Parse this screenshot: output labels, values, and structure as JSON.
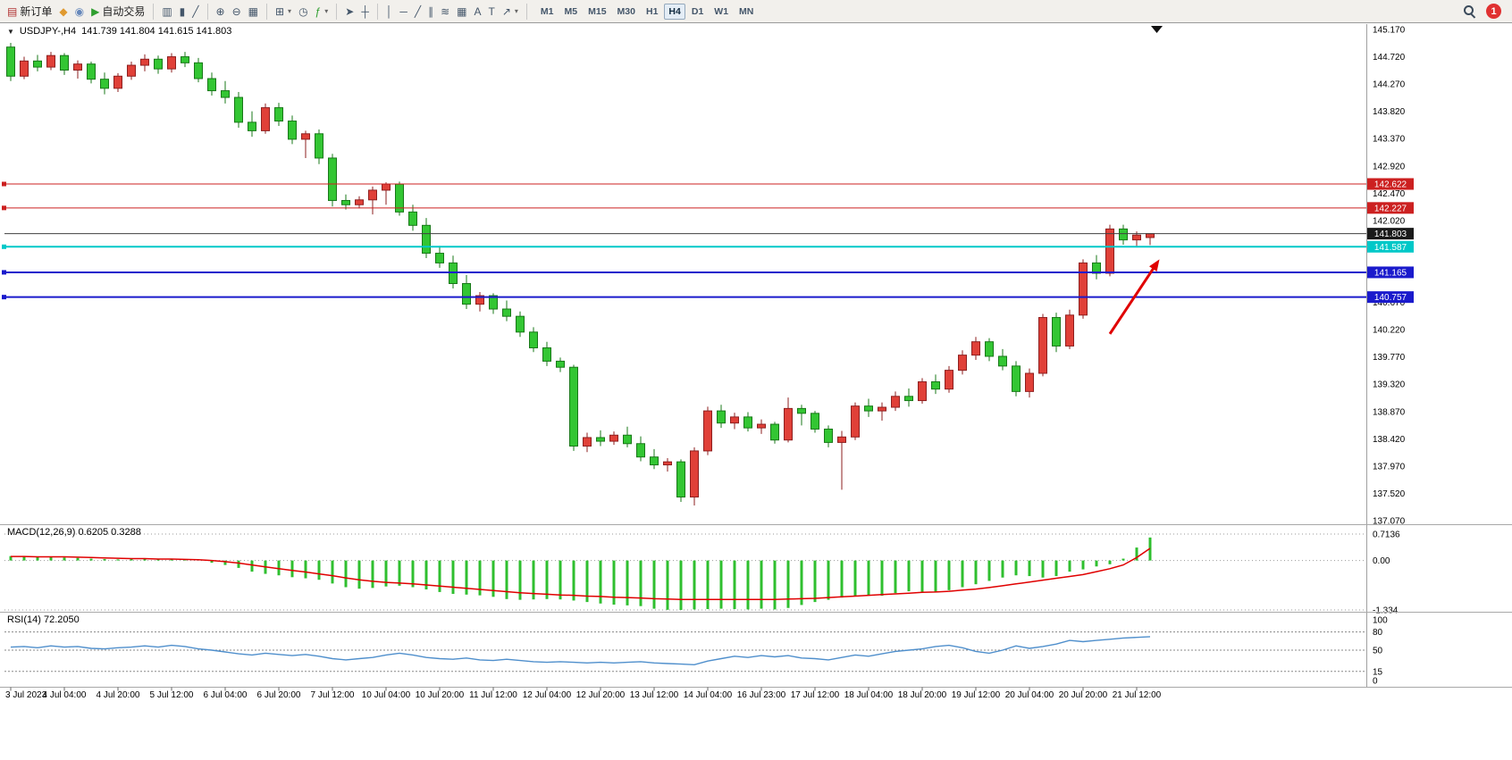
{
  "toolbar": {
    "groups": [
      {
        "items": [
          {
            "name": "new-order",
            "glyph": "▤",
            "color": "#b03030",
            "label": "新订单"
          },
          {
            "name": "chart-launcher",
            "glyph": "◆",
            "color": "#e09a30"
          },
          {
            "name": "profile",
            "glyph": "◉",
            "color": "#6688bb"
          },
          {
            "name": "auto-trading",
            "glyph": "▶",
            "color": "#2f9e2f",
            "label": "自动交易"
          }
        ]
      },
      {
        "items": [
          {
            "name": "bars-chart",
            "glyph": "▥"
          },
          {
            "name": "candles-chart",
            "glyph": "▮"
          },
          {
            "name": "line-chart",
            "glyph": "╱"
          }
        ]
      },
      {
        "items": [
          {
            "name": "zoom-in",
            "glyph": "⊕"
          },
          {
            "name": "zoom-out",
            "glyph": "⊖"
          },
          {
            "name": "tile-windows",
            "glyph": "▦"
          }
        ]
      },
      {
        "items": [
          {
            "name": "new-chart",
            "glyph": "⊞",
            "dropdown": true
          },
          {
            "name": "period-clock",
            "glyph": "◷"
          },
          {
            "name": "indicators",
            "glyph": "ƒ",
            "color": "#2f9e2f",
            "dropdown": true
          }
        ]
      },
      {
        "items": [
          {
            "name": "cursor",
            "glyph": "➤"
          },
          {
            "name": "crosshair",
            "glyph": "┼"
          }
        ]
      },
      {
        "items": [
          {
            "name": "vertical-line",
            "glyph": "│"
          },
          {
            "name": "horizontal-line",
            "glyph": "─"
          },
          {
            "name": "trendline",
            "glyph": "╱"
          },
          {
            "name": "equidistant-channel",
            "glyph": "∥"
          },
          {
            "name": "fibonacci",
            "glyph": "≋"
          },
          {
            "name": "grid",
            "glyph": "▦"
          },
          {
            "name": "text",
            "glyph": "A"
          },
          {
            "name": "text-label",
            "glyph": "T"
          },
          {
            "name": "arrow-shapes",
            "glyph": "↗",
            "dropdown": true
          }
        ]
      }
    ],
    "timeframes": [
      "M1",
      "M5",
      "M15",
      "M30",
      "H1",
      "H4",
      "D1",
      "W1",
      "MN"
    ],
    "active_timeframe": "H4",
    "notification_count": "1"
  },
  "chart_header": {
    "collapse_glyph": "▼",
    "symbol": "USDJPY-,H4",
    "ohlc": "141.739 141.804 141.615 141.803"
  },
  "indicators": {
    "macd_label": "MACD(12,26,9) 0.6205 0.3288",
    "rsi_label": "RSI(14) 72.2050"
  },
  "chart_data": {
    "type": "candlestick",
    "title": "USDJPY- H4",
    "note": "Chinese color convention: red = bullish (close>=open), green = bearish",
    "y_range": [
      137.07,
      145.17
    ],
    "y_ticks": [
      "145.170",
      "144.720",
      "144.270",
      "143.820",
      "143.370",
      "142.920",
      "142.470",
      "142.020",
      "141.570",
      "141.120",
      "140.670",
      "140.220",
      "139.770",
      "139.320",
      "138.870",
      "138.420",
      "137.970",
      "137.520",
      "137.070"
    ],
    "x_labels": [
      "3 Jul 2023",
      "4 Jul 04:00",
      "4 Jul 20:00",
      "5 Jul 12:00",
      "6 Jul 04:00",
      "6 Jul 20:00",
      "7 Jul 12:00",
      "10 Jul 04:00",
      "10 Jul 20:00",
      "11 Jul 12:00",
      "12 Jul 04:00",
      "12 Jul 20:00",
      "13 Jul 12:00",
      "14 Jul 04:00",
      "16 Jul 23:00",
      "17 Jul 12:00",
      "18 Jul 04:00",
      "18 Jul 20:00",
      "19 Jul 12:00",
      "20 Jul 04:00",
      "20 Jul 20:00",
      "21 Jul 12:00"
    ],
    "up_color": "#e04038",
    "up_stroke": "#8e1f1f",
    "down_color": "#33c633",
    "down_stroke": "#187818",
    "candles": [
      [
        144.88,
        144.95,
        144.32,
        144.4
      ],
      [
        144.4,
        144.72,
        144.35,
        144.65
      ],
      [
        144.65,
        144.75,
        144.48,
        144.55
      ],
      [
        144.55,
        144.8,
        144.5,
        144.74
      ],
      [
        144.74,
        144.78,
        144.42,
        144.5
      ],
      [
        144.5,
        144.66,
        144.36,
        144.6
      ],
      [
        144.6,
        144.64,
        144.28,
        144.35
      ],
      [
        144.35,
        144.46,
        144.1,
        144.2
      ],
      [
        144.2,
        144.45,
        144.14,
        144.4
      ],
      [
        144.4,
        144.64,
        144.34,
        144.58
      ],
      [
        144.58,
        144.76,
        144.48,
        144.68
      ],
      [
        144.68,
        144.74,
        144.44,
        144.52
      ],
      [
        144.52,
        144.78,
        144.46,
        144.72
      ],
      [
        144.72,
        144.8,
        144.55,
        144.62
      ],
      [
        144.62,
        144.7,
        144.3,
        144.36
      ],
      [
        144.36,
        144.46,
        144.08,
        144.16
      ],
      [
        144.16,
        144.32,
        143.95,
        144.05
      ],
      [
        144.05,
        144.14,
        143.55,
        143.64
      ],
      [
        143.64,
        143.82,
        143.4,
        143.5
      ],
      [
        143.5,
        143.95,
        143.45,
        143.88
      ],
      [
        143.88,
        143.96,
        143.58,
        143.66
      ],
      [
        143.66,
        143.75,
        143.28,
        143.36
      ],
      [
        143.36,
        143.5,
        143.05,
        143.45
      ],
      [
        143.45,
        143.52,
        142.95,
        143.05
      ],
      [
        143.05,
        143.12,
        142.25,
        142.35
      ],
      [
        142.35,
        142.45,
        142.2,
        142.28
      ],
      [
        142.28,
        142.42,
        142.22,
        142.36
      ],
      [
        142.36,
        142.58,
        142.12,
        142.52
      ],
      [
        142.52,
        142.65,
        142.28,
        142.62
      ],
      [
        142.62,
        142.66,
        142.1,
        142.16
      ],
      [
        142.16,
        142.28,
        141.85,
        141.94
      ],
      [
        141.94,
        142.06,
        141.4,
        141.48
      ],
      [
        141.48,
        141.6,
        141.24,
        141.32
      ],
      [
        141.32,
        141.44,
        140.9,
        140.98
      ],
      [
        140.98,
        141.12,
        140.56,
        140.64
      ],
      [
        140.64,
        140.84,
        140.52,
        140.78
      ],
      [
        140.78,
        140.82,
        140.48,
        140.56
      ],
      [
        140.56,
        140.7,
        140.36,
        140.44
      ],
      [
        140.44,
        140.52,
        140.1,
        140.18
      ],
      [
        140.18,
        140.26,
        139.85,
        139.92
      ],
      [
        139.92,
        140.02,
        139.62,
        139.7
      ],
      [
        139.7,
        139.76,
        139.52,
        139.6
      ],
      [
        139.6,
        139.64,
        138.22,
        138.3
      ],
      [
        138.3,
        138.52,
        138.2,
        138.44
      ],
      [
        138.44,
        138.56,
        138.3,
        138.38
      ],
      [
        138.38,
        138.54,
        138.32,
        138.48
      ],
      [
        138.48,
        138.62,
        138.28,
        138.34
      ],
      [
        138.34,
        138.46,
        138.05,
        138.12
      ],
      [
        138.12,
        138.25,
        137.92,
        137.99
      ],
      [
        137.99,
        138.1,
        137.88,
        138.04
      ],
      [
        138.04,
        138.08,
        137.38,
        137.46
      ],
      [
        137.46,
        138.28,
        137.32,
        138.22
      ],
      [
        138.22,
        138.95,
        138.15,
        138.88
      ],
      [
        138.88,
        138.98,
        138.6,
        138.68
      ],
      [
        138.68,
        138.85,
        138.58,
        138.78
      ],
      [
        138.78,
        138.86,
        138.54,
        138.6
      ],
      [
        138.6,
        138.74,
        138.5,
        138.66
      ],
      [
        138.66,
        138.7,
        138.34,
        138.4
      ],
      [
        138.4,
        139.1,
        138.36,
        138.92
      ],
      [
        138.92,
        138.98,
        138.64,
        138.84
      ],
      [
        138.84,
        138.88,
        138.52,
        138.58
      ],
      [
        138.58,
        138.64,
        138.28,
        138.36
      ],
      [
        138.36,
        138.55,
        137.58,
        138.45
      ],
      [
        138.45,
        139.02,
        138.4,
        138.96
      ],
      [
        138.96,
        139.08,
        138.78,
        138.88
      ],
      [
        138.88,
        139.02,
        138.72,
        138.94
      ],
      [
        138.94,
        139.2,
        138.88,
        139.12
      ],
      [
        139.12,
        139.25,
        138.95,
        139.05
      ],
      [
        139.05,
        139.42,
        139.0,
        139.36
      ],
      [
        139.36,
        139.48,
        139.16,
        139.24
      ],
      [
        139.24,
        139.62,
        139.18,
        139.55
      ],
      [
        139.55,
        139.88,
        139.48,
        139.8
      ],
      [
        139.8,
        140.1,
        139.72,
        140.02
      ],
      [
        140.02,
        140.08,
        139.7,
        139.78
      ],
      [
        139.78,
        139.9,
        139.55,
        139.62
      ],
      [
        139.62,
        139.7,
        139.12,
        139.2
      ],
      [
        139.2,
        139.58,
        139.1,
        139.5
      ],
      [
        139.5,
        140.48,
        139.45,
        140.42
      ],
      [
        140.42,
        140.5,
        139.85,
        139.95
      ],
      [
        139.95,
        140.55,
        139.9,
        140.46
      ],
      [
        140.46,
        141.38,
        140.4,
        141.32
      ],
      [
        141.32,
        141.45,
        141.05,
        141.15
      ],
      [
        141.15,
        141.95,
        141.1,
        141.88
      ],
      [
        141.88,
        141.95,
        141.62,
        141.7
      ],
      [
        141.7,
        141.84,
        141.6,
        141.78
      ],
      [
        141.739,
        141.804,
        141.615,
        141.803
      ]
    ],
    "hlines": [
      {
        "price": 142.622,
        "label": "142.622",
        "color": "#cc2020",
        "width": 1
      },
      {
        "price": 142.227,
        "label": "142.227",
        "color": "#cc2020",
        "width": 1
      },
      {
        "price": 141.803,
        "label": "141.803",
        "color": "#404040",
        "width": 1,
        "current": true,
        "badge": "#1a1a1a"
      },
      {
        "price": 141.587,
        "label": "141.587",
        "color": "#00c8c8",
        "width": 2
      },
      {
        "price": 141.165,
        "label": "141.165",
        "color": "#1a1acc",
        "width": 2
      },
      {
        "price": 140.757,
        "label": "140.757",
        "color": "#1a1acc",
        "width": 2
      }
    ],
    "arrow": {
      "from_candle": 82.0,
      "from_price": 140.15,
      "to_candle": 85.7,
      "to_price": 141.38,
      "color": "#e00000"
    },
    "macd": {
      "range": [
        -1.334,
        0.7136
      ],
      "axis_labels": [
        "0.7136",
        "0.00",
        "-1.334"
      ],
      "hist": [
        0.12,
        0.1,
        0.09,
        0.11,
        0.08,
        0.07,
        0.05,
        0.04,
        0.03,
        0.04,
        0.05,
        0.04,
        0.03,
        0.02,
        0.0,
        -0.06,
        -0.12,
        -0.2,
        -0.3,
        -0.36,
        -0.4,
        -0.45,
        -0.48,
        -0.52,
        -0.62,
        -0.72,
        -0.76,
        -0.74,
        -0.7,
        -0.68,
        -0.72,
        -0.78,
        -0.85,
        -0.9,
        -0.92,
        -0.94,
        -0.98,
        -1.04,
        -1.06,
        -1.05,
        -1.04,
        -1.05,
        -1.08,
        -1.12,
        -1.16,
        -1.19,
        -1.21,
        -1.23,
        -1.3,
        -1.33,
        -1.334,
        -1.32,
        -1.31,
        -1.3,
        -1.31,
        -1.32,
        -1.3,
        -1.32,
        -1.28,
        -1.2,
        -1.12,
        -1.06,
        -1.0,
        -0.97,
        -0.94,
        -0.95,
        -0.88,
        -0.83,
        -0.84,
        -0.86,
        -0.8,
        -0.72,
        -0.64,
        -0.55,
        -0.46,
        -0.4,
        -0.42,
        -0.46,
        -0.42,
        -0.3,
        -0.24,
        -0.16,
        -0.1,
        0.05,
        0.35,
        0.6205
      ],
      "signal": [
        0.11,
        0.11,
        0.1,
        0.1,
        0.1,
        0.09,
        0.08,
        0.07,
        0.06,
        0.05,
        0.05,
        0.04,
        0.04,
        0.03,
        0.02,
        0.0,
        -0.03,
        -0.07,
        -0.12,
        -0.17,
        -0.22,
        -0.27,
        -0.31,
        -0.36,
        -0.41,
        -0.47,
        -0.52,
        -0.56,
        -0.59,
        -0.61,
        -0.63,
        -0.66,
        -0.69,
        -0.72,
        -0.75,
        -0.78,
        -0.81,
        -0.84,
        -0.87,
        -0.89,
        -0.91,
        -0.93,
        -0.94,
        -0.96,
        -0.97,
        -0.99,
        -1.0,
        -1.01,
        -1.03,
        -1.04,
        -1.05,
        -1.05,
        -1.05,
        -1.05,
        -1.05,
        -1.05,
        -1.05,
        -1.05,
        -1.04,
        -1.03,
        -1.02,
        -1.0,
        -0.98,
        -0.96,
        -0.94,
        -0.92,
        -0.9,
        -0.88,
        -0.86,
        -0.85,
        -0.83,
        -0.8,
        -0.77,
        -0.73,
        -0.68,
        -0.63,
        -0.58,
        -0.53,
        -0.48,
        -0.43,
        -0.38,
        -0.3,
        -0.22,
        -0.12,
        0.08,
        0.3288
      ],
      "hist_color": "#2fbf2f",
      "signal_color": "#e00000"
    },
    "rsi": {
      "range": [
        0,
        100
      ],
      "levels": [
        80,
        50,
        15
      ],
      "axis_labels": [
        "100",
        "80",
        "50",
        "15",
        "0"
      ],
      "values": [
        55,
        56,
        54,
        57,
        55,
        56,
        53,
        52,
        54,
        55,
        57,
        55,
        58,
        56,
        52,
        50,
        47,
        44,
        42,
        45,
        43,
        41,
        43,
        40,
        36,
        34,
        36,
        38,
        42,
        45,
        42,
        38,
        36,
        35,
        37,
        34,
        33,
        35,
        33,
        31,
        30,
        31,
        30,
        29,
        30,
        29,
        30,
        31,
        29,
        28,
        27,
        26,
        32,
        36,
        40,
        38,
        41,
        39,
        41,
        37,
        36,
        34,
        38,
        42,
        40,
        44,
        48,
        50,
        52,
        56,
        58,
        54,
        48,
        45,
        50,
        57,
        53,
        56,
        60,
        66,
        64,
        66,
        68,
        70,
        71,
        72.2
      ],
      "line_color": "#4f8fcc"
    }
  }
}
